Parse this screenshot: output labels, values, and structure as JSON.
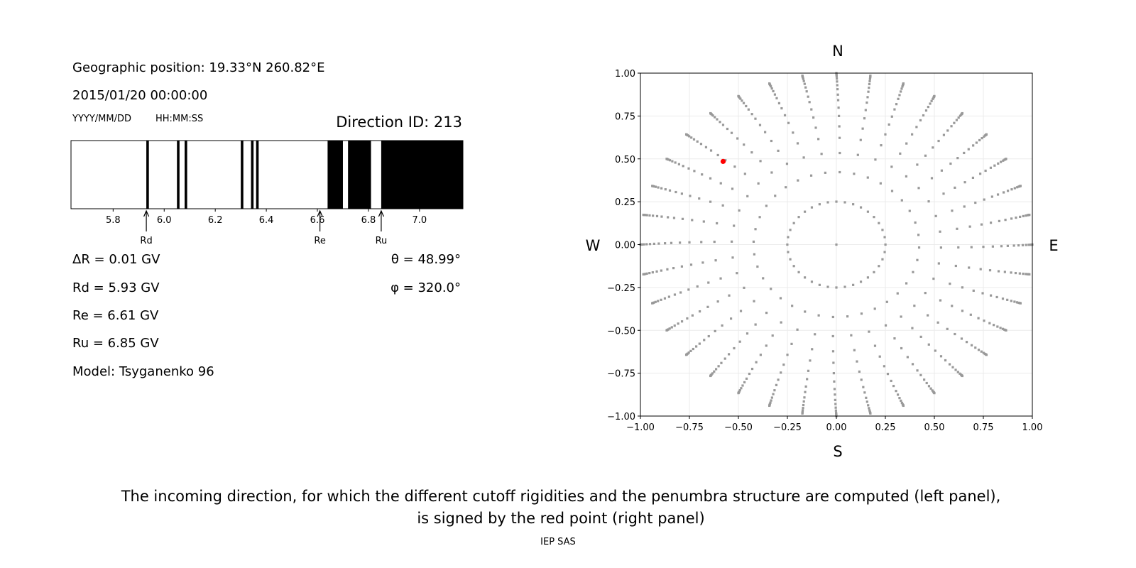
{
  "left_panel": {
    "geo_position": "Geographic position: 19.33°N 260.82°E",
    "datetime": "2015/01/20 00:00:00",
    "date_format_label": "YYYY/MM/DD",
    "time_format_label": "HH:MM:SS",
    "direction_id": "Direction ID: 213",
    "delta_r": "ΔR = 0.01 GV",
    "rd": "Rd = 5.93 GV",
    "re": "Re = 6.61 GV",
    "ru": "Ru = 6.85 GV",
    "model": "Model: Tsyganenko 96",
    "theta": "θ = 48.99°",
    "phi": "φ = 320.0°"
  },
  "chart_data": [
    {
      "type": "bar",
      "subtype": "penumbra-stripes",
      "xlim": [
        5.635,
        7.17
      ],
      "xticks": [
        5.8,
        6.0,
        6.2,
        6.4,
        6.6,
        6.8,
        7.0
      ],
      "xtick_labels": [
        "5.8",
        "6.0",
        "6.2",
        "6.4",
        "6.6",
        "6.8",
        "7.0"
      ],
      "forbidden_bands": [
        [
          5.93,
          5.94
        ],
        [
          6.05,
          6.06
        ],
        [
          6.08,
          6.09
        ],
        [
          6.3,
          6.31
        ],
        [
          6.34,
          6.35
        ],
        [
          6.36,
          6.37
        ],
        [
          6.64,
          6.7
        ],
        [
          6.72,
          6.81
        ],
        [
          6.85,
          7.17
        ]
      ],
      "annotations": [
        {
          "label": "Rd",
          "x": 5.93
        },
        {
          "label": "Re",
          "x": 6.61
        },
        {
          "label": "Ru",
          "x": 6.85
        }
      ],
      "colors": {
        "forbidden": "#000000",
        "allowed": "#ffffff"
      }
    },
    {
      "type": "scatter",
      "xlim": [
        -1,
        1
      ],
      "ylim": [
        -1,
        1
      ],
      "grid": true,
      "xticks": [
        "−1.00",
        "−0.75",
        "−0.50",
        "−0.25",
        "0.00",
        "0.25",
        "0.50",
        "0.75",
        "1.00"
      ],
      "yticks": [
        "−1.00",
        "−0.75",
        "−0.50",
        "−0.25",
        "0.00",
        "0.25",
        "0.50",
        "0.75",
        "1.00"
      ],
      "direction_labels": {
        "north": "N",
        "south": "S",
        "west": "W",
        "east": "E"
      },
      "grid_directions": {
        "zenith_deg": [
          0,
          14.5,
          25,
          32.3,
          38.5,
          43.6,
          48.6,
          53,
          57.4,
          61,
          65,
          68.4,
          72,
          75.5,
          79,
          82,
          84.5,
          87,
          90
        ],
        "azimuth_step_deg": 10,
        "color": "#999999"
      },
      "selected_direction": {
        "x": -0.578,
        "y": 0.485,
        "color": "#ff0000"
      }
    }
  ],
  "caption": {
    "line1": "The incoming direction, for which the different cutoff rigidities and the penumbra structure are computed (left panel),",
    "line2": "is signed by the red point (right panel)"
  },
  "footer": "IEP SAS"
}
